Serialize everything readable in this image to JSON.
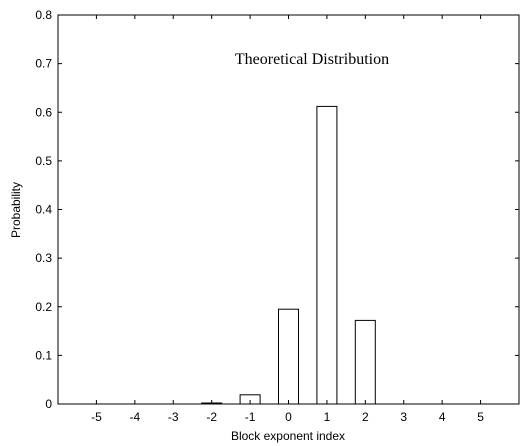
{
  "chart_data": {
    "type": "bar",
    "title": "Theoretical  Distribution",
    "xlabel": "Block exponent index",
    "ylabel": "Probability",
    "categories": [
      "-5",
      "-4",
      "-3",
      "-2",
      "-1",
      "0",
      "1",
      "2",
      "3",
      "4",
      "5"
    ],
    "x": [
      -5,
      -4,
      -3,
      -2,
      -1,
      0,
      1,
      2,
      3,
      4,
      5
    ],
    "values": [
      0,
      0,
      0,
      0.002,
      0.019,
      0.195,
      0.612,
      0.172,
      0,
      0,
      0
    ],
    "xlim": [
      -6,
      6
    ],
    "ylim": [
      0,
      0.8
    ],
    "yticks": [
      "0",
      "0.1",
      "0.2",
      "0.3",
      "0.4",
      "0.5",
      "0.6",
      "0.7",
      "0.8"
    ],
    "grid": false,
    "bar_fill": "#ffffff",
    "bar_stroke": "#000000"
  }
}
